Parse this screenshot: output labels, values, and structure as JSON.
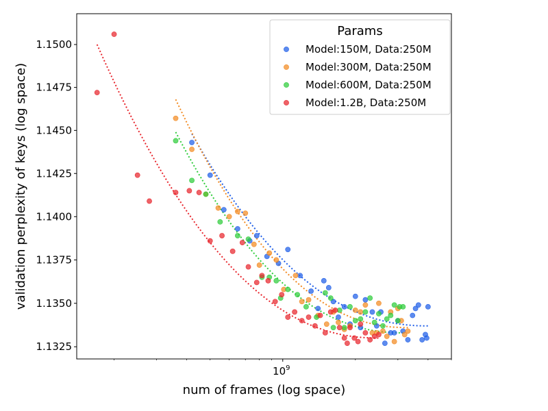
{
  "chart_data": {
    "type": "scatter",
    "xlabel": "num of frames (log space)",
    "ylabel": "validation perplexity of keys (log space)",
    "x_scale": "log",
    "y_scale": "log",
    "xlim": [
      140000000,
      5000000000
    ],
    "ylim": [
      1.1318,
      1.1518
    ],
    "x_ticks": [
      {
        "value": 1000000000,
        "base": "10",
        "exp": "9"
      }
    ],
    "y_ticks": [
      {
        "value": 1.1325,
        "label": "1.1325"
      },
      {
        "value": 1.135,
        "label": "1.1350"
      },
      {
        "value": 1.1375,
        "label": "1.1375"
      },
      {
        "value": 1.14,
        "label": "1.1400"
      },
      {
        "value": 1.1425,
        "label": "1.1425"
      },
      {
        "value": 1.145,
        "label": "1.1450"
      },
      {
        "value": 1.1475,
        "label": "1.1475"
      },
      {
        "value": 1.15,
        "label": "1.1500"
      }
    ],
    "grid": false,
    "legend": {
      "title": "Params",
      "position": "top-right"
    },
    "series": [
      {
        "name": "Model:150M, Data:250M",
        "color": "#1f5ee8",
        "points": [
          [
            420000000,
            1.1443
          ],
          [
            500000000,
            1.1424
          ],
          [
            570000000,
            1.1404
          ],
          [
            650000000,
            1.1393
          ],
          [
            730000000,
            1.1386
          ],
          [
            780000000,
            1.1389
          ],
          [
            860000000,
            1.1377
          ],
          [
            960000000,
            1.1373
          ],
          [
            1050000000,
            1.1381
          ],
          [
            1180000000,
            1.1366
          ],
          [
            1310000000,
            1.1357
          ],
          [
            1400000000,
            1.1347
          ],
          [
            1480000000,
            1.1363
          ],
          [
            1550000000,
            1.1359
          ],
          [
            1620000000,
            1.1351
          ],
          [
            1700000000,
            1.1342
          ],
          [
            1800000000,
            1.1348
          ],
          [
            1900000000,
            1.1338
          ],
          [
            2000000000,
            1.1354
          ],
          [
            2100000000,
            1.1336
          ],
          [
            2200000000,
            1.1352
          ],
          [
            2350000000,
            1.1345
          ],
          [
            2450000000,
            1.1337
          ],
          [
            2550000000,
            1.1345
          ],
          [
            2650000000,
            1.1327
          ],
          [
            2800000000,
            1.1333
          ],
          [
            2900000000,
            1.1333
          ],
          [
            3000000000,
            1.134
          ],
          [
            3150000000,
            1.1334
          ],
          [
            3300000000,
            1.1329
          ],
          [
            3450000000,
            1.1343
          ],
          [
            3550000000,
            1.1347
          ],
          [
            3650000000,
            1.1349
          ],
          [
            3780000000,
            1.1329
          ],
          [
            3900000000,
            1.1332
          ],
          [
            3950000000,
            1.133
          ],
          [
            4000000000,
            1.1348
          ]
        ],
        "fit": [
          [
            420000000,
            1.1448
          ],
          [
            4000000000,
            1.1337
          ]
        ]
      },
      {
        "name": "Model:300M, Data:250M",
        "color": "#f28a21",
        "points": [
          [
            360000000,
            1.1457
          ],
          [
            420000000,
            1.1439
          ],
          [
            480000000,
            1.1413
          ],
          [
            540000000,
            1.1405
          ],
          [
            600000000,
            1.14
          ],
          [
            650000000,
            1.1403
          ],
          [
            700000000,
            1.1402
          ],
          [
            760000000,
            1.1384
          ],
          [
            800000000,
            1.1372
          ],
          [
            880000000,
            1.1379
          ],
          [
            940000000,
            1.1375
          ],
          [
            1010000000,
            1.1358
          ],
          [
            1130000000,
            1.1366
          ],
          [
            1200000000,
            1.1351
          ],
          [
            1280000000,
            1.1352
          ],
          [
            1400000000,
            1.1343
          ],
          [
            1520000000,
            1.1338
          ],
          [
            1620000000,
            1.1345
          ],
          [
            1700000000,
            1.1339
          ],
          [
            1800000000,
            1.1335
          ],
          [
            1900000000,
            1.1337
          ],
          [
            2000000000,
            1.1346
          ],
          [
            2100000000,
            1.1345
          ],
          [
            2200000000,
            1.1349
          ],
          [
            2350000000,
            1.1333
          ],
          [
            2450000000,
            1.1333
          ],
          [
            2500000000,
            1.135
          ],
          [
            2600000000,
            1.1334
          ],
          [
            2700000000,
            1.1331
          ],
          [
            2800000000,
            1.1345
          ],
          [
            2900000000,
            1.1328
          ],
          [
            3000000000,
            1.1347
          ],
          [
            3100000000,
            1.134
          ],
          [
            3200000000,
            1.1332
          ],
          [
            3300000000,
            1.1334
          ]
        ],
        "fit": [
          [
            360000000,
            1.1468
          ],
          [
            3300000000,
            1.1336
          ]
        ]
      },
      {
        "name": "Model:600M, Data:250M",
        "color": "#2ecc3a",
        "points": [
          [
            360000000,
            1.1444
          ],
          [
            420000000,
            1.1421
          ],
          [
            480000000,
            1.1413
          ],
          [
            550000000,
            1.1397
          ],
          [
            650000000,
            1.1389
          ],
          [
            720000000,
            1.1387
          ],
          [
            820000000,
            1.1365
          ],
          [
            880000000,
            1.1365
          ],
          [
            940000000,
            1.1363
          ],
          [
            980000000,
            1.1353
          ],
          [
            1050000000,
            1.1358
          ],
          [
            1150000000,
            1.1355
          ],
          [
            1250000000,
            1.1348
          ],
          [
            1380000000,
            1.1342
          ],
          [
            1500000000,
            1.1356
          ],
          [
            1580000000,
            1.1353
          ],
          [
            1620000000,
            1.1336
          ],
          [
            1720000000,
            1.1346
          ],
          [
            1800000000,
            1.1336
          ],
          [
            1900000000,
            1.1348
          ],
          [
            2000000000,
            1.134
          ],
          [
            2100000000,
            1.1341
          ],
          [
            2200000000,
            1.1345
          ],
          [
            2300000000,
            1.1353
          ],
          [
            2400000000,
            1.1339
          ],
          [
            2500000000,
            1.1344
          ],
          [
            2600000000,
            1.1337
          ],
          [
            2700000000,
            1.1341
          ],
          [
            2800000000,
            1.1343
          ],
          [
            2900000000,
            1.1349
          ],
          [
            3000000000,
            1.134
          ],
          [
            3050000000,
            1.1348
          ],
          [
            3150000000,
            1.1348
          ]
        ],
        "fit": [
          [
            360000000,
            1.1449
          ],
          [
            3150000000,
            1.1333
          ]
        ]
      },
      {
        "name": "Model:1.2B, Data:250M",
        "color": "#e8262d",
        "points": [
          [
            170000000,
            1.1472
          ],
          [
            200000000,
            1.1506
          ],
          [
            250000000,
            1.1424
          ],
          [
            280000000,
            1.1409
          ],
          [
            360000000,
            1.1414
          ],
          [
            410000000,
            1.1415
          ],
          [
            450000000,
            1.1414
          ],
          [
            500000000,
            1.1386
          ],
          [
            560000000,
            1.1389
          ],
          [
            620000000,
            1.138
          ],
          [
            680000000,
            1.1385
          ],
          [
            720000000,
            1.1371
          ],
          [
            780000000,
            1.1362
          ],
          [
            820000000,
            1.1366
          ],
          [
            870000000,
            1.1363
          ],
          [
            930000000,
            1.1351
          ],
          [
            990000000,
            1.1355
          ],
          [
            1050000000,
            1.1342
          ],
          [
            1120000000,
            1.1345
          ],
          [
            1200000000,
            1.134
          ],
          [
            1280000000,
            1.1342
          ],
          [
            1360000000,
            1.1337
          ],
          [
            1430000000,
            1.1343
          ],
          [
            1500000000,
            1.1333
          ],
          [
            1580000000,
            1.1345
          ],
          [
            1650000000,
            1.1346
          ],
          [
            1720000000,
            1.1336
          ],
          [
            1800000000,
            1.133
          ],
          [
            1850000000,
            1.1327
          ],
          [
            1900000000,
            1.1336
          ],
          [
            1980000000,
            1.133
          ],
          [
            2050000000,
            1.1328
          ],
          [
            2100000000,
            1.1338
          ],
          [
            2200000000,
            1.1333
          ],
          [
            2300000000,
            1.1329
          ],
          [
            2400000000,
            1.1331
          ],
          [
            2500000000,
            1.1332
          ]
        ],
        "fit": [
          [
            170000000,
            1.15
          ],
          [
            2500000000,
            1.133
          ]
        ]
      }
    ]
  }
}
